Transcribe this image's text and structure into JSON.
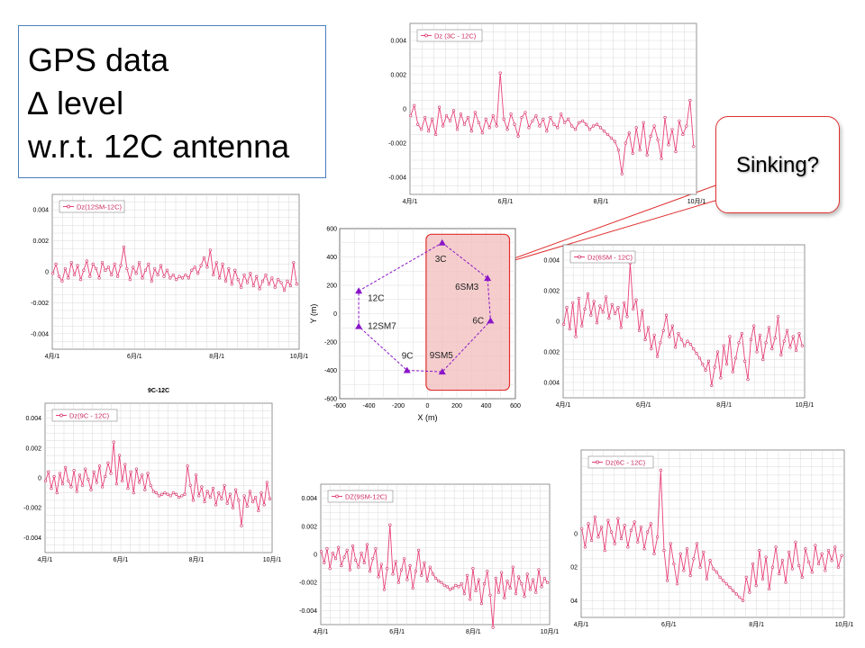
{
  "title_lines": [
    "GPS data",
    "∆ level",
    "w.r.t. 12C antenna"
  ],
  "callout": {
    "text": "Sinking?"
  },
  "colors": {
    "series": "#e8417a",
    "marker": "#d22e66",
    "map_point": "#8a16c8",
    "map_path": "#8a16c8",
    "highlight_fill": "#f2bcbc",
    "highlight_stroke": "#e03030"
  },
  "chart_data": [
    {
      "id": "dz-3c",
      "type": "line",
      "legend": "Dz (3C - 12C)",
      "x_ticks": [
        "4月/1",
        "6月/1",
        "8月/1",
        "10月/1"
      ],
      "y_ticks": [
        "0.004",
        "0.002",
        "0",
        "-0.002",
        "-0.004"
      ],
      "ylim": [
        -0.005,
        0.005
      ],
      "x": [
        1,
        6,
        11,
        16,
        21,
        26,
        31,
        36,
        41,
        46,
        51,
        56,
        61,
        66,
        71,
        76,
        81,
        86,
        91,
        96,
        101,
        106,
        111,
        116,
        121,
        126,
        131,
        136,
        141,
        146,
        151,
        156,
        161,
        166,
        171,
        176,
        181,
        186,
        191,
        196,
        201,
        206,
        211,
        216,
        221,
        226,
        231,
        236,
        241,
        246,
        251,
        256,
        261,
        266,
        271,
        276,
        281,
        286,
        291,
        296,
        301,
        306,
        311,
        316,
        321,
        326,
        331,
        336,
        341,
        346,
        351,
        356,
        361,
        366,
        371,
        376,
        381,
        386,
        391,
        396
      ],
      "values": [
        -0.0004,
        0.0002,
        -0.0009,
        -0.0012,
        -0.0005,
        -0.0013,
        -0.0006,
        -0.0015,
        0.0001,
        -0.001,
        -0.0004,
        -0.0007,
        -0.0001,
        -0.0012,
        -0.0003,
        -0.0009,
        -0.0005,
        -0.0013,
        -0.0002,
        -0.0008,
        -0.0014,
        -0.0006,
        -0.0011,
        -0.0004,
        -0.001,
        0.0021,
        -0.0006,
        -0.0012,
        -0.0003,
        -0.0009,
        -0.0016,
        -0.0005,
        -0.0002,
        -0.0011,
        -0.0007,
        -0.0004,
        -0.001,
        -0.0006,
        -0.0013,
        -0.0005,
        -0.0009,
        -0.0011,
        -0.0003,
        -0.0008,
        -0.0006,
        -0.001,
        -0.0012,
        -0.0008,
        -0.0007,
        -0.0009,
        -0.0012,
        -0.001,
        -0.0009,
        -0.0011,
        -0.0013,
        -0.0015,
        -0.0017,
        -0.0019,
        -0.0024,
        -0.0038,
        -0.002,
        -0.0014,
        -0.0026,
        -0.0011,
        -0.0024,
        -0.0008,
        -0.0027,
        -0.0016,
        -0.001,
        -0.0018,
        -0.0029,
        -0.0005,
        -0.0021,
        -0.0012,
        -0.0025,
        -0.0007,
        -0.0015,
        -0.001,
        0.0005,
        -0.0022
      ],
      "box": {
        "x": 455,
        "y": 26,
        "w": 318,
        "h": 190
      }
    },
    {
      "id": "dz-12sm",
      "type": "line",
      "legend": "Dz(12SM-12C)",
      "x_ticks": [
        "4月/1",
        "6月/1",
        "8月/1",
        "10月/1"
      ],
      "y_ticks": [
        "0.004",
        "0.002",
        "0",
        "-0.002",
        "-0.004"
      ],
      "ylim": [
        -0.005,
        0.005
      ],
      "x": [
        1,
        6,
        11,
        16,
        21,
        26,
        31,
        36,
        41,
        46,
        51,
        56,
        61,
        66,
        71,
        76,
        81,
        86,
        91,
        96,
        101,
        106,
        111,
        116,
        121,
        126,
        131,
        136,
        141,
        146,
        151,
        156,
        161,
        166,
        171,
        176,
        181,
        186,
        191,
        196,
        201,
        206,
        211,
        216,
        221,
        226,
        231,
        236,
        241,
        246,
        251,
        256,
        261,
        266,
        271,
        276,
        281,
        286,
        291,
        296,
        301,
        306,
        311,
        316,
        321,
        326,
        331,
        336,
        341,
        346,
        351,
        356,
        361,
        366,
        371,
        376,
        381,
        386,
        391,
        396
      ],
      "values": [
        -0.0001,
        0.0005,
        -0.0003,
        -0.0006,
        0.0002,
        -0.0004,
        0.0006,
        -0.0002,
        0.0004,
        -0.0005,
        0.0001,
        0.0007,
        -0.0003,
        0.0005,
        0.0002,
        -0.0004,
        0.0006,
        0.0001,
        0.0003,
        -0.0002,
        0.0005,
        -0.0003,
        0.0004,
        0.0016,
        0.0002,
        -0.0005,
        0.0003,
        -0.0001,
        0.0006,
        -0.0004,
        0.0001,
        0.0005,
        -0.0006,
        0.0002,
        -0.0002,
        0.0004,
        -0.0003,
        0.0001,
        -0.0004,
        -0.0002,
        -0.0005,
        -0.0003,
        -0.0004,
        -0.0002,
        -0.0004,
        0.0001,
        0.0003,
        -0.0001,
        0.0004,
        0.0009,
        0.0003,
        0.0014,
        -0.0002,
        0.0006,
        -0.0004,
        0.0005,
        -0.0006,
        0.0002,
        -0.0008,
        0.0001,
        -0.0005,
        -0.001,
        -0.0002,
        -0.0007,
        -0.0001,
        -0.0009,
        -0.0003,
        -0.0011,
        -0.0006,
        -0.0002,
        -0.0008,
        -0.0004,
        -0.001,
        -0.0005,
        -0.0007,
        -0.0012,
        -0.0006,
        -0.0009,
        0.0006,
        -0.0008
      ],
      "box": {
        "x": 58,
        "y": 216,
        "w": 274,
        "h": 172
      }
    },
    {
      "id": "dz-6sm",
      "type": "line",
      "legend": "Dz(6SM - 12C)",
      "x_ticks": [
        "4月/1",
        "6月/1",
        "8月/1",
        "10月/1"
      ],
      "y_ticks": [
        "0.004",
        "0.002",
        "0",
        "0.002",
        "0.004"
      ],
      "ylim": [
        -0.005,
        0.005
      ],
      "x": [
        1,
        6,
        11,
        16,
        21,
        26,
        31,
        36,
        41,
        46,
        51,
        56,
        61,
        66,
        71,
        76,
        81,
        86,
        91,
        96,
        101,
        106,
        111,
        116,
        121,
        126,
        131,
        136,
        141,
        146,
        151,
        156,
        161,
        166,
        171,
        176,
        181,
        186,
        191,
        196,
        201,
        206,
        211,
        216,
        221,
        226,
        231,
        236,
        241,
        246,
        251,
        256,
        261,
        266,
        271,
        276,
        281,
        286,
        291,
        296,
        301,
        306,
        311,
        316,
        321,
        326,
        331,
        336,
        341,
        346,
        351,
        356,
        361,
        366,
        371,
        376,
        381,
        386,
        391,
        396
      ],
      "values": [
        -0.0002,
        0.0009,
        -0.0005,
        0.0012,
        -0.001,
        0.0015,
        -0.0003,
        0.0008,
        0.0018,
        0.0004,
        0.0013,
        -0.0001,
        0.001,
        0.0006,
        0.0016,
        0.0002,
        0.0011,
        0.0005,
        0.0009,
        -0.0004,
        0.0012,
        0.0003,
        0.0038,
        0.0008,
        0.0014,
        -0.0006,
        0.0007,
        -0.0012,
        -0.0004,
        -0.0018,
        -0.0009,
        -0.0023,
        -0.0014,
        -0.0006,
        0.0004,
        -0.001,
        -0.0003,
        -0.0017,
        -0.0008,
        -0.0012,
        -0.0016,
        -0.0013,
        -0.0015,
        -0.0018,
        -0.0021,
        -0.0024,
        -0.0028,
        -0.0032,
        -0.0026,
        -0.0042,
        -0.003,
        -0.002,
        -0.0037,
        -0.0016,
        -0.0028,
        -0.001,
        -0.0033,
        -0.0024,
        -0.0014,
        -0.0008,
        -0.0026,
        -0.0038,
        -0.0012,
        -0.0003,
        -0.002,
        -0.0009,
        -0.0025,
        -0.0014,
        -0.0004,
        -0.0018,
        -0.0011,
        0.0003,
        -0.0022,
        -0.0013,
        -0.0006,
        -0.0017,
        -0.001,
        -0.0019,
        -0.0008,
        -0.0016
      ],
      "box": {
        "x": 625,
        "y": 272,
        "w": 268,
        "h": 170
      }
    },
    {
      "id": "dz-9c",
      "type": "line",
      "title": "9C-12C",
      "legend": "Dz(9C - 12C)",
      "x_ticks": [
        "4月/1",
        "6月/1",
        "8月/1",
        "10月/1"
      ],
      "y_ticks": [
        "0.004",
        "0.002",
        "0",
        "-0.002",
        "-0.004"
      ],
      "ylim": [
        -0.005,
        0.005
      ],
      "x": [
        1,
        6,
        11,
        16,
        21,
        26,
        31,
        36,
        41,
        46,
        51,
        56,
        61,
        66,
        71,
        76,
        81,
        86,
        91,
        96,
        101,
        106,
        111,
        116,
        121,
        126,
        131,
        136,
        141,
        146,
        151,
        156,
        161,
        166,
        171,
        176,
        181,
        186,
        191,
        196,
        201,
        206,
        211,
        216,
        221,
        226,
        231,
        236,
        241,
        246,
        251,
        256,
        261,
        266,
        271,
        276,
        281,
        286,
        291,
        296,
        301,
        306,
        311,
        316,
        321,
        326,
        331,
        336,
        341,
        346,
        351,
        356,
        361,
        366,
        371,
        376,
        381,
        386,
        391,
        396
      ],
      "values": [
        -0.0002,
        0.0004,
        -0.0007,
        0.0001,
        -0.001,
        0.0003,
        -0.0004,
        0.0007,
        -0.0002,
        -0.0006,
        0.0005,
        -0.0009,
        0.0002,
        -0.0005,
        0.0006,
        -0.0001,
        -0.0008,
        0.0004,
        -0.0003,
        0.0008,
        -0.0006,
        0.0001,
        0.001,
        0.0003,
        0.0024,
        -0.0004,
        0.0015,
        -0.0002,
        0.0009,
        -0.0007,
        0.0004,
        -0.001,
        0.0006,
        -0.0003,
        0.0002,
        -0.0008,
        0.0003,
        -0.0005,
        -0.0009,
        -0.001,
        -0.0012,
        -0.0011,
        -0.001,
        -0.0011,
        -0.0012,
        -0.001,
        -0.0011,
        -0.0013,
        -0.0012,
        -0.0011,
        0.0008,
        -0.0005,
        -0.0015,
        0.0002,
        -0.0012,
        -0.0006,
        -0.0016,
        -0.0009,
        -0.0013,
        -0.0007,
        -0.0018,
        -0.001,
        -0.0014,
        -0.0005,
        -0.0017,
        -0.0011,
        -0.002,
        -0.0008,
        -0.0015,
        -0.0032,
        -0.0012,
        -0.0019,
        -0.0009,
        -0.0016,
        -0.0013,
        -0.0022,
        -0.001,
        -0.0018,
        -0.0003,
        -0.0014
      ],
      "box": {
        "x": 50,
        "y": 448,
        "w": 252,
        "h": 166
      }
    },
    {
      "id": "dz-9sm",
      "type": "line",
      "legend": "DZ(9SM-12C)",
      "x_ticks": [
        "4月/1",
        "6月/1",
        "8月/1",
        "10月/1"
      ],
      "y_ticks": [
        "0.004",
        "0.002",
        "0",
        "-0.002",
        "-0.004"
      ],
      "ylim": [
        -0.005,
        0.005
      ],
      "x": [
        1,
        6,
        11,
        16,
        21,
        26,
        31,
        36,
        41,
        46,
        51,
        56,
        61,
        66,
        71,
        76,
        81,
        86,
        91,
        96,
        101,
        106,
        111,
        116,
        121,
        126,
        131,
        136,
        141,
        146,
        151,
        156,
        161,
        166,
        171,
        176,
        181,
        186,
        191,
        196,
        201,
        206,
        211,
        216,
        221,
        226,
        231,
        236,
        241,
        246,
        251,
        256,
        261,
        266,
        271,
        276,
        281,
        286,
        291,
        296,
        301,
        306,
        311,
        316,
        321,
        326,
        331,
        336,
        341,
        346,
        351,
        356,
        361,
        366,
        371,
        376,
        381,
        386,
        391,
        396
      ],
      "values": [
        0.0002,
        -0.0006,
        0.0004,
        -0.001,
        0.0001,
        -0.0003,
        0.0005,
        -0.0008,
        -0.0002,
        0.0003,
        -0.0011,
        0.0006,
        -0.0004,
        -0.0009,
        0.0001,
        -0.0006,
        0.0007,
        -0.0012,
        -0.0003,
        0.0004,
        -0.0016,
        -0.0007,
        -0.0025,
        -0.001,
        0.0021,
        -0.0014,
        -0.0005,
        -0.002,
        -0.0011,
        -0.0003,
        -0.0018,
        -0.0008,
        -0.0024,
        -0.0012,
        0.0003,
        -0.0015,
        -0.0006,
        -0.0019,
        -0.0009,
        -0.0014,
        -0.0017,
        -0.0019,
        -0.002,
        -0.0022,
        -0.0023,
        -0.0025,
        -0.0024,
        -0.0022,
        -0.0023,
        -0.0021,
        -0.0028,
        -0.0015,
        -0.0032,
        -0.001,
        -0.0026,
        -0.0018,
        -0.0035,
        -0.0021,
        -0.0012,
        -0.0029,
        -0.0052,
        -0.0017,
        -0.0027,
        -0.0013,
        -0.0031,
        -0.0019,
        -0.0024,
        -0.0009,
        -0.0028,
        -0.0016,
        -0.0021,
        -0.003,
        -0.0014,
        -0.0025,
        -0.0018,
        -0.0027,
        -0.0011,
        -0.0023,
        -0.0017,
        -0.002
      ],
      "box": {
        "x": 356,
        "y": 538,
        "w": 254,
        "h": 156
      }
    },
    {
      "id": "dz-6c",
      "type": "line",
      "legend": "Dz(6C - 12C)",
      "x_ticks": [
        "4月/1",
        "6月/1",
        "8月/1",
        "10月/1"
      ],
      "y_ticks": [
        "0",
        "02",
        "04"
      ],
      "ylim": [
        -0.005,
        0.005
      ],
      "x": [
        1,
        6,
        11,
        16,
        21,
        26,
        31,
        36,
        41,
        46,
        51,
        56,
        61,
        66,
        71,
        76,
        81,
        86,
        91,
        96,
        101,
        106,
        111,
        116,
        121,
        126,
        131,
        136,
        141,
        146,
        151,
        156,
        161,
        166,
        171,
        176,
        181,
        186,
        191,
        196,
        201,
        206,
        211,
        216,
        221,
        226,
        231,
        236,
        241,
        246,
        251,
        256,
        261,
        266,
        271,
        276,
        281,
        286,
        291,
        296,
        301,
        306,
        311,
        316,
        321,
        326,
        331,
        336,
        341,
        346,
        351,
        356,
        361,
        366,
        371,
        376,
        381,
        386,
        391,
        396
      ],
      "values": [
        0.0003,
        -0.0008,
        0.0006,
        -0.0004,
        0.001,
        -0.0002,
        0.0004,
        -0.001,
        0.0008,
        0.0001,
        -0.0006,
        0.0009,
        -0.0003,
        0.0005,
        -0.0008,
        0.0002,
        0.0007,
        -0.0005,
        0.0004,
        -0.0009,
        0.0001,
        0.0006,
        -0.0012,
        -0.0002,
        0.0038,
        -0.001,
        -0.0028,
        -0.0006,
        -0.0018,
        -0.003,
        -0.0012,
        -0.0022,
        -0.0009,
        -0.0025,
        -0.0015,
        -0.0006,
        -0.002,
        -0.0011,
        -0.0027,
        -0.0016,
        -0.0021,
        -0.0023,
        -0.0026,
        -0.0028,
        -0.003,
        -0.0032,
        -0.0034,
        -0.0036,
        -0.0038,
        -0.004,
        -0.0026,
        -0.0035,
        -0.0018,
        -0.0031,
        -0.001,
        -0.0027,
        -0.0014,
        -0.0033,
        -0.002,
        -0.0008,
        -0.0024,
        -0.0016,
        -0.0029,
        -0.0011,
        -0.0021,
        -0.0005,
        -0.0019,
        -0.0026,
        -0.0009,
        -0.0017,
        -0.0023,
        -0.0007,
        -0.0018,
        -0.0012,
        -0.0022,
        -0.001,
        -0.0016,
        -0.0008,
        -0.002,
        -0.0013
      ],
      "box": {
        "x": 645,
        "y": 500,
        "w": 292,
        "h": 186
      }
    }
  ],
  "map": {
    "type": "scatter",
    "xlabel": "X (m)",
    "ylabel": "Y (m)",
    "x_ticks": [
      -600,
      -400,
      -200,
      0,
      200,
      400,
      600
    ],
    "y_ticks": [
      600,
      400,
      200,
      0,
      -200,
      -400,
      -600
    ],
    "xlim": [
      -600,
      600
    ],
    "ylim": [
      -600,
      600
    ],
    "stations": [
      {
        "name": "3C",
        "x": 100,
        "y": 500
      },
      {
        "name": "6SM3",
        "x": 410,
        "y": 250
      },
      {
        "name": "6C",
        "x": 430,
        "y": -50
      },
      {
        "name": "9SM5",
        "x": 100,
        "y": -410
      },
      {
        "name": "9C",
        "x": -140,
        "y": -400
      },
      {
        "name": "12SM7",
        "x": -470,
        "y": -90
      },
      {
        "name": "12C",
        "x": -470,
        "y": 160
      }
    ],
    "box": {
      "x": 377,
      "y": 254,
      "w": 195,
      "h": 189
    }
  }
}
